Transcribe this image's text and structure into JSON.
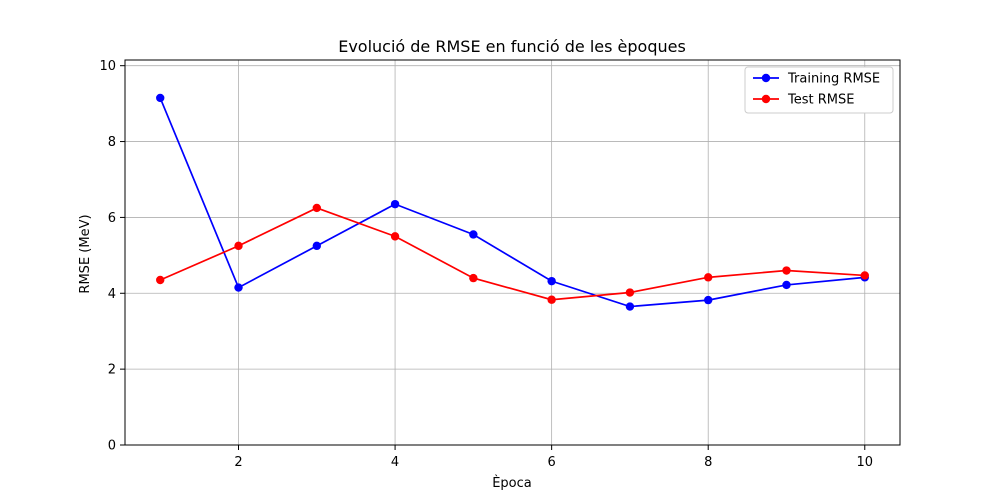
{
  "chart_data": {
    "type": "line",
    "title": "Evolució de RMSE en funció de les èpoques",
    "xlabel": "Època",
    "ylabel": "RMSE (MeV)",
    "x": [
      1,
      2,
      3,
      4,
      5,
      6,
      7,
      8,
      9,
      10
    ],
    "xlim": [
      0.55,
      10.45
    ],
    "ylim": [
      0,
      10.15
    ],
    "xticks": [
      2,
      4,
      6,
      8,
      10
    ],
    "yticks": [
      0,
      2,
      4,
      6,
      8,
      10
    ],
    "grid": true,
    "legend_position": "top-right",
    "series": [
      {
        "name": "Training RMSE",
        "color": "#0000ff",
        "marker": "circle",
        "values": [
          9.15,
          4.15,
          5.25,
          6.35,
          5.55,
          4.32,
          3.65,
          3.82,
          4.22,
          4.42
        ]
      },
      {
        "name": "Test RMSE",
        "color": "#ff0000",
        "marker": "circle",
        "values": [
          4.35,
          5.25,
          6.25,
          5.5,
          4.4,
          3.83,
          4.02,
          4.42,
          4.6,
          4.47
        ]
      }
    ]
  }
}
